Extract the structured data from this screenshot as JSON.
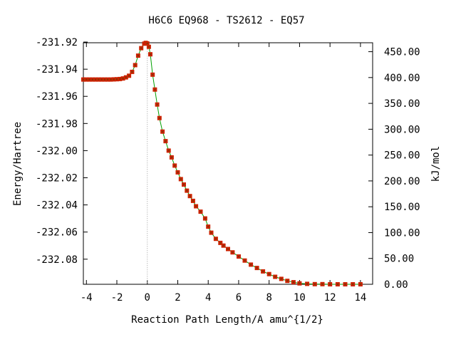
{
  "chart_data": {
    "type": "line",
    "title": "H6C6   EQ968 - TS2612 - EQ57",
    "xlabel": "Reaction Path Length/A amu^{1/2}",
    "ylabel": "Energy/Hartree",
    "y2label": "kJ/mol",
    "xlim": [
      -4.2,
      14.8
    ],
    "ylim": [
      -232.0985,
      -231.9205
    ],
    "y2lim": [
      0.0,
      467.3
    ],
    "reference_energy": -232.0985,
    "ts_marker_x": 0.0,
    "x_ticks": [
      "-4",
      "-2",
      "0",
      "2",
      "4",
      "6",
      "8",
      "10",
      "12",
      "14"
    ],
    "x_tick_values": [
      -4,
      -2,
      0,
      2,
      4,
      6,
      8,
      10,
      12,
      14
    ],
    "y_ticks": [
      "-231.92",
      "-231.94",
      "-231.96",
      "-231.98",
      "-232.00",
      "-232.02",
      "-232.04",
      "-232.06",
      "-232.08"
    ],
    "y_tick_values": [
      -231.92,
      -231.94,
      -231.96,
      -231.98,
      -232.0,
      -232.02,
      -232.04,
      -232.06,
      -232.08
    ],
    "y2_ticks": [
      "450.00",
      "400.00",
      "350.00",
      "300.00",
      "250.00",
      "200.00",
      "150.00",
      "100.00",
      "50.00",
      "0.00"
    ],
    "y2_tick_values": [
      450,
      400,
      350,
      300,
      250,
      200,
      150,
      100,
      50,
      0
    ],
    "grid": false,
    "legend": "none",
    "colors": {
      "line": "#00a000",
      "marker": "#cc2200",
      "marker_center": "#7a3a00",
      "ts_line": "#a0a0a0",
      "axis": "#000000"
    },
    "series": [
      {
        "x": [
          -4.2,
          -4.0,
          -3.8,
          -3.6,
          -3.4,
          -3.2,
          -3.0,
          -2.8,
          -2.6,
          -2.4,
          -2.2,
          -2.0,
          -1.8,
          -1.6,
          -1.4,
          -1.2,
          -1.0,
          -0.8,
          -0.6,
          -0.4,
          -0.2,
          -0.1,
          0.0,
          0.1,
          0.2,
          0.35,
          0.5,
          0.65,
          0.8,
          1.0,
          1.2,
          1.4,
          1.6,
          1.8,
          2.0,
          2.2,
          2.4,
          2.6,
          2.8,
          3.0,
          3.2,
          3.5,
          3.8,
          4.0,
          4.2,
          4.5,
          4.8,
          5.0,
          5.3,
          5.6,
          6.0,
          6.4,
          6.8,
          7.2,
          7.6,
          8.0,
          8.4,
          8.8,
          9.2,
          9.6,
          10.0,
          10.5,
          11.0,
          11.5,
          12.0,
          12.5,
          13.0,
          13.5,
          14.0
        ],
        "y": [
          -231.9476,
          -231.9476,
          -231.9476,
          -231.9476,
          -231.9476,
          -231.9476,
          -231.9476,
          -231.9476,
          -231.9476,
          -231.9476,
          -231.9475,
          -231.9474,
          -231.9472,
          -231.9468,
          -231.946,
          -231.9448,
          -231.942,
          -231.937,
          -231.93,
          -231.9245,
          -231.9212,
          -231.9206,
          -231.921,
          -231.9235,
          -231.929,
          -231.944,
          -231.955,
          -231.966,
          -231.976,
          -231.986,
          -231.993,
          -232.0,
          -232.005,
          -232.011,
          -232.016,
          -232.021,
          -232.025,
          -232.0295,
          -232.0335,
          -232.037,
          -232.041,
          -232.045,
          -232.05,
          -232.056,
          -232.0605,
          -232.065,
          -232.068,
          -232.07,
          -232.0725,
          -232.075,
          -232.078,
          -232.081,
          -232.084,
          -232.0865,
          -232.089,
          -232.091,
          -232.093,
          -232.0945,
          -232.096,
          -232.097,
          -232.0978,
          -232.0982,
          -232.0984,
          -232.0984,
          -232.0985,
          -232.0985,
          -232.0985,
          -232.0985,
          -232.0985
        ]
      }
    ]
  }
}
